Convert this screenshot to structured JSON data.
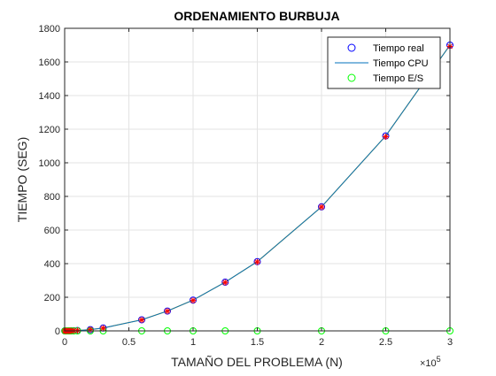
{
  "chart_data": {
    "type": "line",
    "title": "ORDENAMIENTO BURBUJA",
    "xlabel": "TAMAÑO DEL PROBLEMA (N)",
    "ylabel": "TIEMPO (SEG)",
    "x_exponent_label": "×10",
    "x_exponent_power": "5",
    "xlim": [
      0,
      300000
    ],
    "ylim": [
      0,
      1800
    ],
    "x_scale_divisor": 100000,
    "x_ticks": [
      0,
      50000,
      100000,
      150000,
      200000,
      250000,
      300000
    ],
    "x_tick_labels": [
      "0",
      "0.5",
      "1",
      "1.5",
      "2",
      "2.5",
      "3"
    ],
    "y_ticks": [
      0,
      200,
      400,
      600,
      800,
      1000,
      1200,
      1400,
      1600,
      1800
    ],
    "y_tick_labels": [
      "0",
      "200",
      "400",
      "600",
      "800",
      "1000",
      "1200",
      "1400",
      "1600",
      "1800"
    ],
    "grid": true,
    "legend_position": "top-right",
    "x": [
      100,
      500,
      1000,
      2000,
      3000,
      4000,
      5000,
      7000,
      10000,
      20000,
      30000,
      60000,
      80000,
      100000,
      125000,
      150000,
      200000,
      250000,
      300000
    ],
    "series": [
      {
        "name": "Tiempo real",
        "marker": "circle",
        "color": "#0000ff",
        "values": [
          0,
          0,
          0,
          0.1,
          0.2,
          0.3,
          0.5,
          0.9,
          1.8,
          7.5,
          17,
          66,
          118,
          183,
          290,
          412,
          738,
          1160,
          1700
        ]
      },
      {
        "name": "Tiempo CPU",
        "marker": "line",
        "color": "#0072bd",
        "values": [
          0,
          0,
          0,
          0.1,
          0.2,
          0.3,
          0.5,
          0.9,
          1.8,
          7.5,
          17,
          66,
          118,
          183,
          290,
          412,
          738,
          1160,
          1700
        ]
      },
      {
        "name": "Tiempo E/S",
        "marker": "circle",
        "color": "#00ff00",
        "values": [
          0,
          0,
          0,
          0,
          0,
          0,
          0,
          0,
          0,
          0,
          0,
          0,
          0,
          0,
          0,
          0,
          0,
          0,
          0
        ]
      }
    ],
    "extra_marks": {
      "red_star_color": "#ff0000",
      "fit_line_color": "#edb120",
      "red_star_values": [
        0,
        0,
        0,
        0.1,
        0.2,
        0.3,
        0.5,
        0.9,
        1.8,
        7.5,
        16,
        65,
        117,
        181,
        288,
        410,
        737,
        1155,
        1692
      ]
    }
  }
}
